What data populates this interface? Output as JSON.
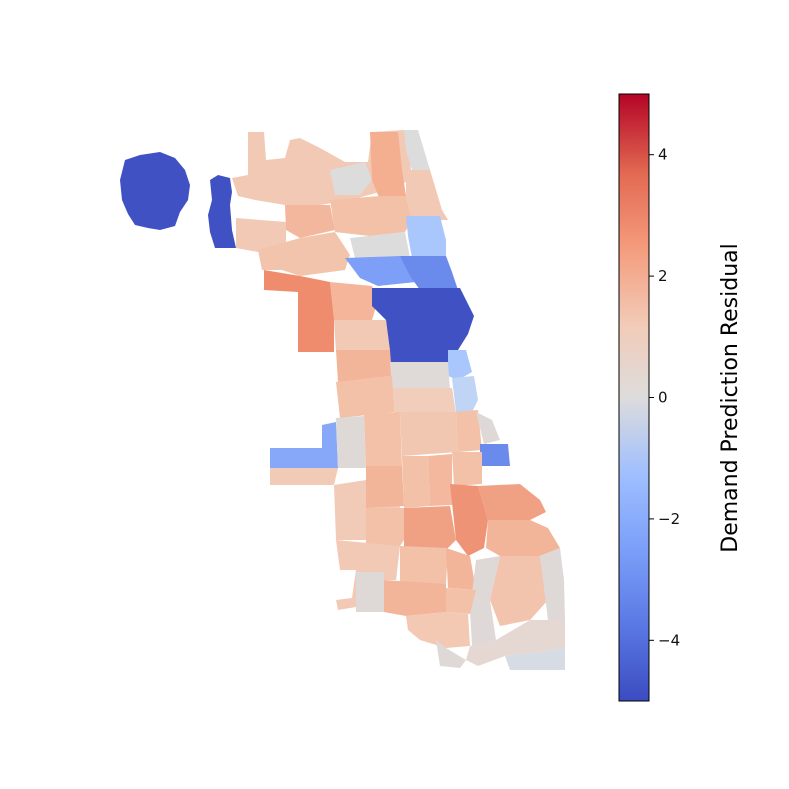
{
  "colorbar": {
    "label": "Demand Prediction Residual",
    "min": -5,
    "max": 5,
    "ticks": [
      {
        "value": 4,
        "label": "4"
      },
      {
        "value": 2,
        "label": "2"
      },
      {
        "value": 0,
        "label": "0"
      },
      {
        "value": -2,
        "label": "−2"
      },
      {
        "value": -4,
        "label": "−4"
      }
    ],
    "colormap": "coolwarm",
    "colors": [
      "#3b4cc0",
      "#8db0fe",
      "#dddcdc",
      "#f49a7b",
      "#b40426"
    ]
  }
}
